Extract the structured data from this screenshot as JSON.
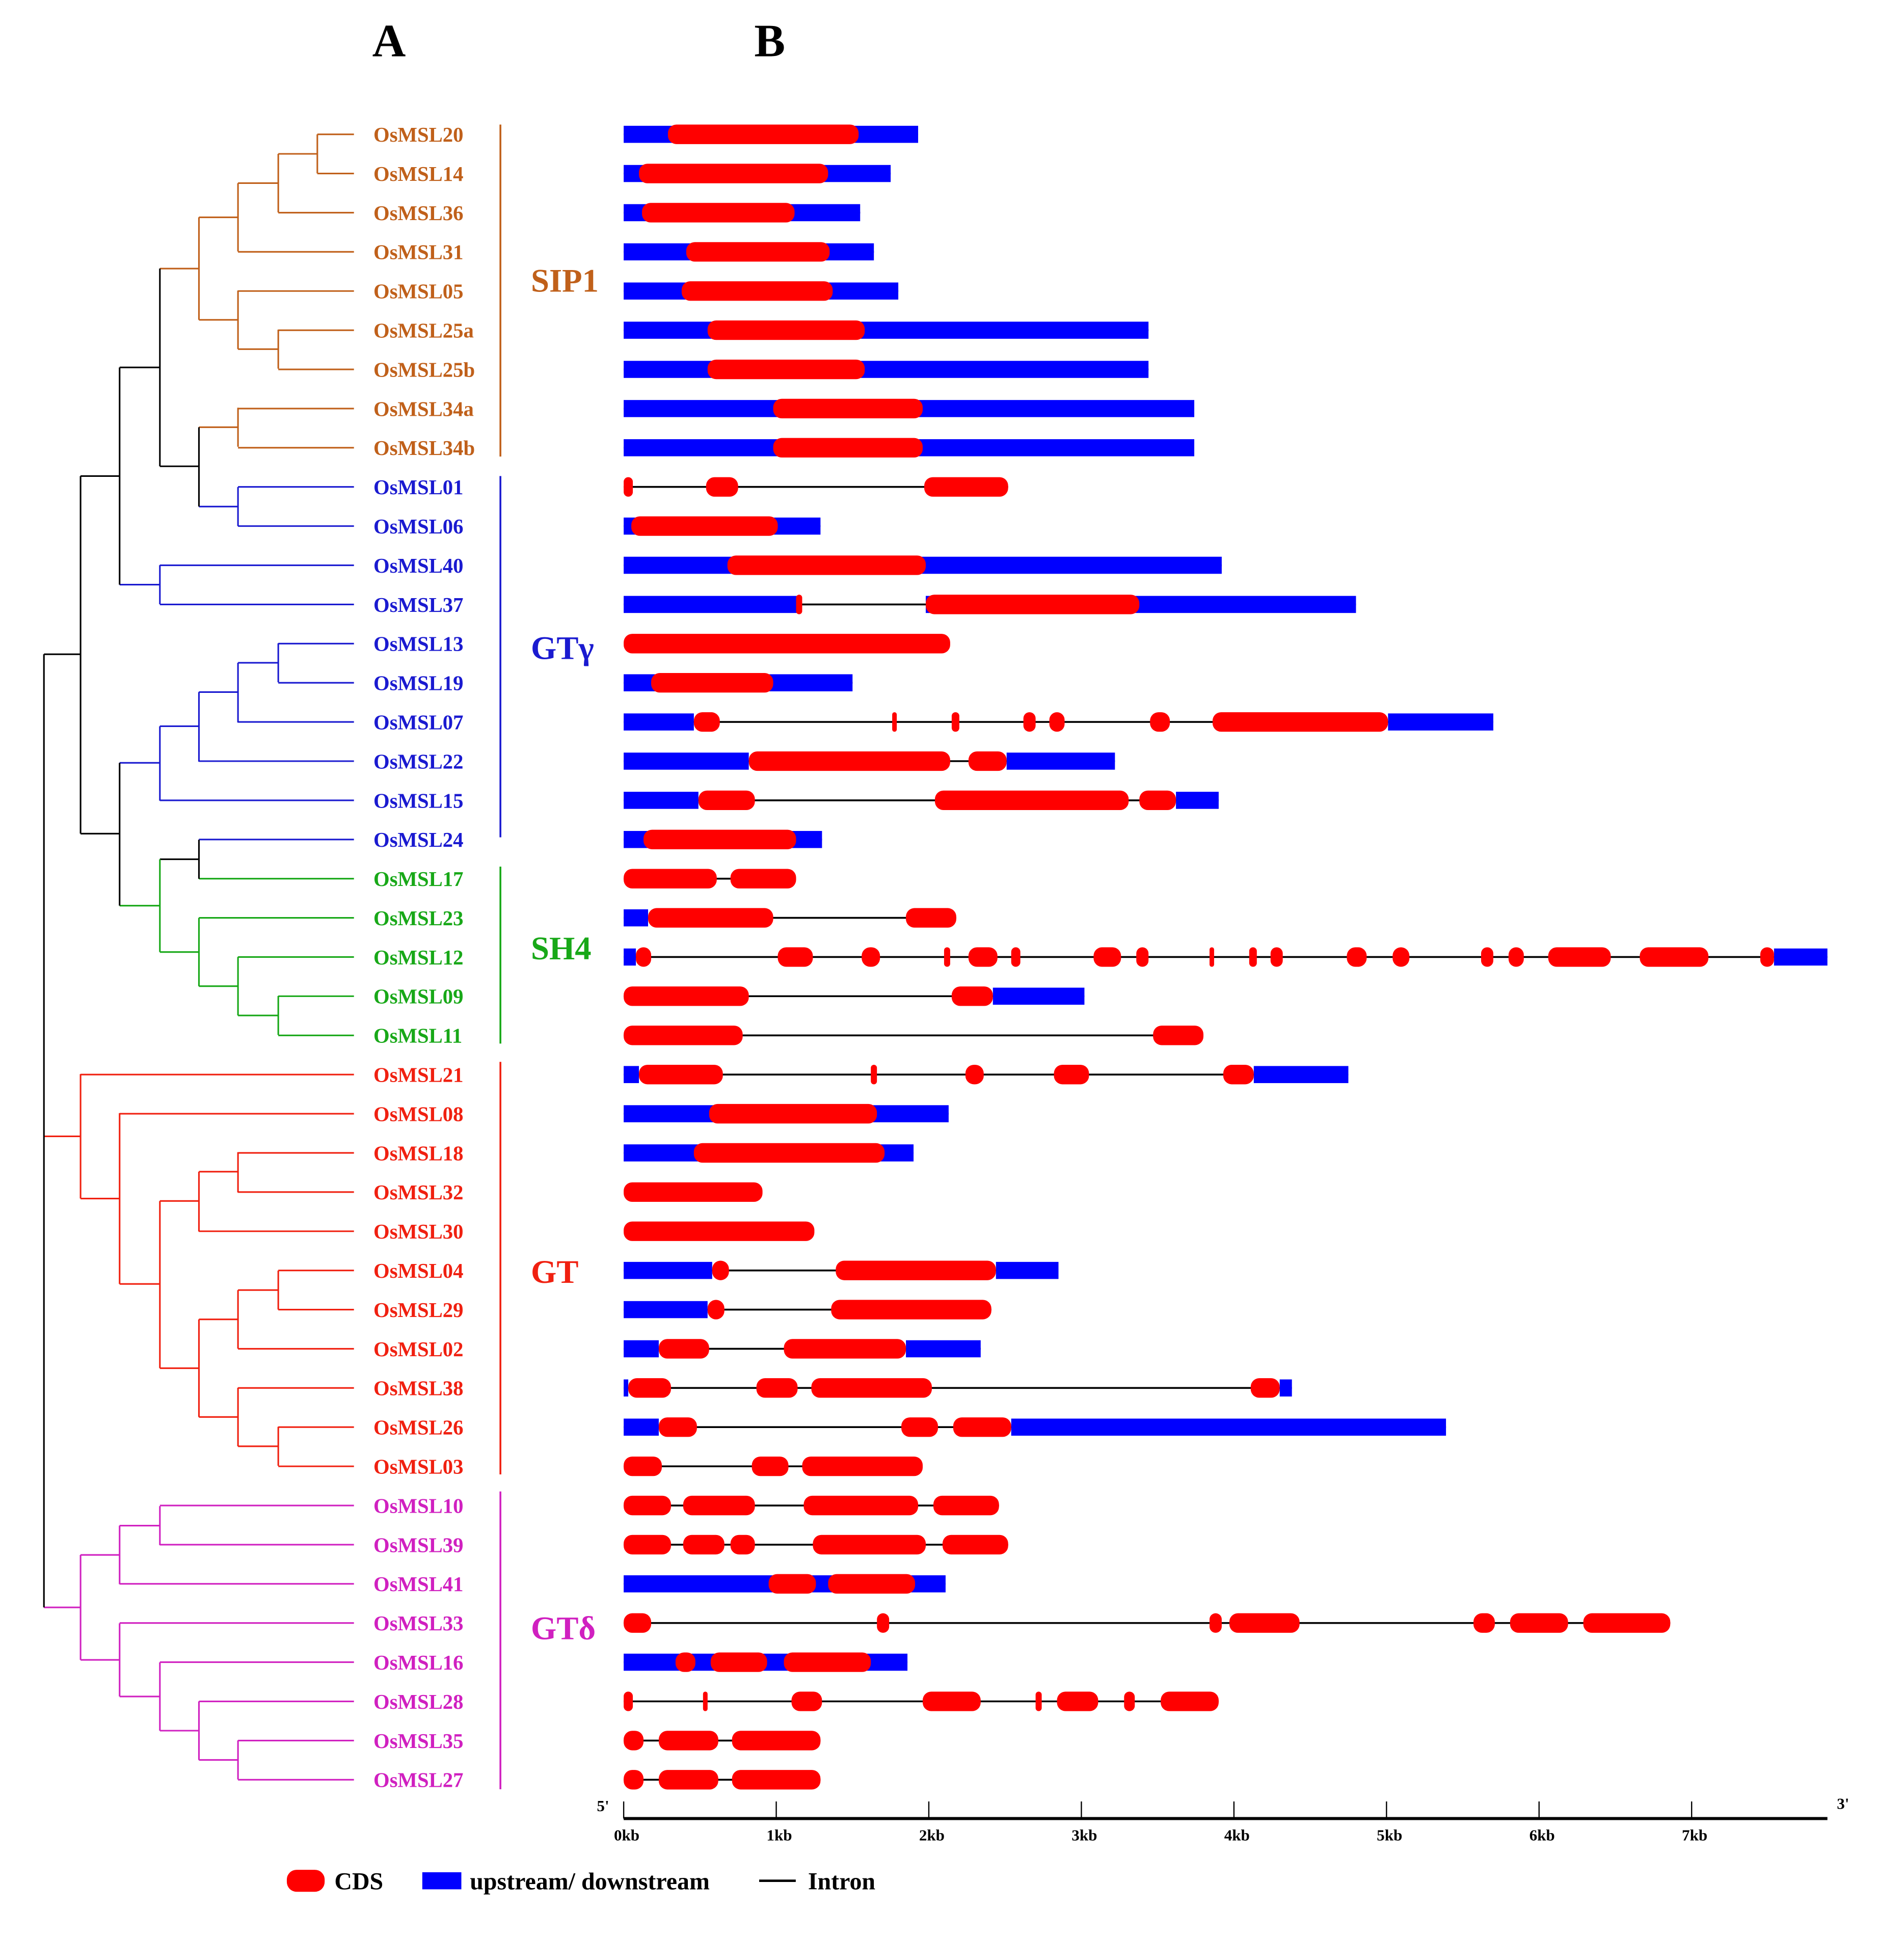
{
  "headers": {
    "a": "A",
    "b": "B"
  },
  "colors": {
    "cds": "#ff0000",
    "utr": "#0000ff",
    "intron": "#000000",
    "tree_internal": "#000000"
  },
  "clades": [
    {
      "name": "SIP1",
      "color": "#c0601a"
    },
    {
      "name": "GTγ",
      "color": "#1a1ad0"
    },
    {
      "name": "SH4",
      "color": "#18a818"
    },
    {
      "name": "GT",
      "color": "#f02010"
    },
    {
      "name": "GTδ",
      "color": "#d020c0"
    }
  ],
  "genes": [
    {
      "name": "OsMSL20",
      "clade": 0,
      "parts": [
        [
          "u",
          0,
          1.93
        ],
        [
          "c",
          0.29,
          1.54
        ]
      ]
    },
    {
      "name": "OsMSL14",
      "clade": 0,
      "parts": [
        [
          "u",
          0,
          1.75
        ],
        [
          "c",
          0.1,
          1.34
        ]
      ]
    },
    {
      "name": "OsMSL36",
      "clade": 0,
      "parts": [
        [
          "u",
          0,
          1.55
        ],
        [
          "c",
          0.12,
          1.12
        ]
      ]
    },
    {
      "name": "OsMSL31",
      "clade": 0,
      "parts": [
        [
          "u",
          0,
          1.64
        ],
        [
          "c",
          0.41,
          1.35
        ]
      ]
    },
    {
      "name": "OsMSL05",
      "clade": 0,
      "parts": [
        [
          "u",
          0,
          1.8
        ],
        [
          "c",
          0.38,
          1.37
        ]
      ]
    },
    {
      "name": "OsMSL25a",
      "clade": 0,
      "parts": [
        [
          "u",
          0,
          3.44
        ],
        [
          "c",
          0.55,
          1.58
        ]
      ]
    },
    {
      "name": "OsMSL25b",
      "clade": 0,
      "parts": [
        [
          "u",
          0,
          3.44
        ],
        [
          "c",
          0.55,
          1.58
        ]
      ]
    },
    {
      "name": "OsMSL34a",
      "clade": 0,
      "parts": [
        [
          "u",
          0,
          3.74
        ],
        [
          "c",
          0.98,
          1.96
        ]
      ]
    },
    {
      "name": "OsMSL34b",
      "clade": 0,
      "parts": [
        [
          "u",
          0,
          3.74
        ],
        [
          "c",
          0.98,
          1.96
        ]
      ]
    },
    {
      "name": "OsMSL01",
      "clade": 1,
      "parts": [
        [
          "c",
          0,
          0.06
        ],
        [
          "c",
          0.54,
          0.75
        ],
        [
          "c",
          1.97,
          2.52
        ]
      ]
    },
    {
      "name": "OsMSL06",
      "clade": 1,
      "parts": [
        [
          "u",
          0,
          1.29
        ],
        [
          "c",
          0.05,
          1.01
        ]
      ]
    },
    {
      "name": "OsMSL40",
      "clade": 1,
      "parts": [
        [
          "u",
          0,
          3.92
        ],
        [
          "c",
          0.68,
          1.98
        ]
      ]
    },
    {
      "name": "OsMSL37",
      "clade": 1,
      "parts": [
        [
          "u",
          0,
          1.14
        ],
        [
          "u",
          1.98,
          4.8
        ],
        [
          "c",
          1.13,
          1.17
        ],
        [
          "c",
          1.98,
          3.38
        ]
      ]
    },
    {
      "name": "OsMSL13",
      "clade": 1,
      "parts": [
        [
          "c",
          0,
          2.14
        ]
      ]
    },
    {
      "name": "OsMSL19",
      "clade": 1,
      "parts": [
        [
          "u",
          0,
          1.5
        ],
        [
          "c",
          0.18,
          0.98
        ]
      ]
    },
    {
      "name": "OsMSL07",
      "clade": 1,
      "parts": [
        [
          "u",
          0,
          0.46
        ],
        [
          "u",
          5.01,
          5.7
        ],
        [
          "c",
          0.46,
          0.63
        ],
        [
          "c",
          1.76,
          1.79
        ],
        [
          "c",
          2.15,
          2.2
        ],
        [
          "c",
          2.62,
          2.7
        ],
        [
          "c",
          2.79,
          2.89
        ],
        [
          "c",
          3.45,
          3.58
        ],
        [
          "c",
          3.86,
          5.01
        ]
      ]
    },
    {
      "name": "OsMSL22",
      "clade": 1,
      "parts": [
        [
          "u",
          0,
          0.82
        ],
        [
          "u",
          2.51,
          3.22
        ],
        [
          "c",
          0.82,
          2.14
        ],
        [
          "c",
          2.26,
          2.51
        ]
      ]
    },
    {
      "name": "OsMSL15",
      "clade": 1,
      "parts": [
        [
          "u",
          0,
          0.49
        ],
        [
          "u",
          3.62,
          3.9
        ],
        [
          "c",
          0.49,
          0.86
        ],
        [
          "c",
          2.04,
          3.31
        ],
        [
          "c",
          3.38,
          3.62
        ]
      ]
    },
    {
      "name": "OsMSL24",
      "clade": 1,
      "parts": [
        [
          "u",
          0,
          1.3
        ],
        [
          "c",
          0.13,
          1.13
        ]
      ]
    },
    {
      "name": "OsMSL17",
      "clade": 2,
      "parts": [
        [
          "c",
          0,
          0.61
        ],
        [
          "c",
          0.7,
          1.13
        ]
      ]
    },
    {
      "name": "OsMSL23",
      "clade": 2,
      "parts": [
        [
          "u",
          0,
          0.16
        ],
        [
          "c",
          0.16,
          0.98
        ],
        [
          "c",
          1.85,
          2.18
        ]
      ]
    },
    {
      "name": "OsMSL12",
      "clade": 2,
      "parts": [
        [
          "u",
          0,
          0.08
        ],
        [
          "u",
          7.54,
          7.89
        ],
        [
          "c",
          0.08,
          0.18
        ],
        [
          "c",
          1.01,
          1.24
        ],
        [
          "c",
          1.56,
          1.68
        ],
        [
          "c",
          2.1,
          2.14
        ],
        [
          "c",
          2.26,
          2.45
        ],
        [
          "c",
          2.54,
          2.6
        ],
        [
          "c",
          3.08,
          3.26
        ],
        [
          "c",
          3.36,
          3.44
        ],
        [
          "c",
          3.84,
          3.87
        ],
        [
          "c",
          4.1,
          4.15
        ],
        [
          "c",
          4.24,
          4.32
        ],
        [
          "c",
          4.74,
          4.87
        ],
        [
          "c",
          5.04,
          5.15
        ],
        [
          "c",
          5.62,
          5.7
        ],
        [
          "c",
          5.8,
          5.9
        ],
        [
          "c",
          6.06,
          6.47
        ],
        [
          "c",
          6.66,
          7.11
        ],
        [
          "c",
          7.45,
          7.54
        ]
      ]
    },
    {
      "name": "OsMSL09",
      "clade": 2,
      "parts": [
        [
          "u",
          2.42,
          3.02
        ],
        [
          "c",
          0,
          0.82
        ],
        [
          "c",
          2.15,
          2.42
        ]
      ]
    },
    {
      "name": "OsMSL11",
      "clade": 2,
      "parts": [
        [
          "c",
          0,
          0.78
        ],
        [
          "c",
          3.47,
          3.8
        ]
      ]
    },
    {
      "name": "OsMSL21",
      "clade": 3,
      "parts": [
        [
          "u",
          0,
          0.1
        ],
        [
          "u",
          4.13,
          4.75
        ],
        [
          "c",
          0.1,
          0.65
        ],
        [
          "c",
          1.62,
          1.66
        ],
        [
          "c",
          2.24,
          2.36
        ],
        [
          "c",
          2.82,
          3.05
        ],
        [
          "c",
          3.93,
          4.13
        ]
      ]
    },
    {
      "name": "OsMSL08",
      "clade": 3,
      "parts": [
        [
          "u",
          0,
          2.13
        ],
        [
          "c",
          0.56,
          1.66
        ]
      ]
    },
    {
      "name": "OsMSL18",
      "clade": 3,
      "parts": [
        [
          "u",
          0,
          1.9
        ],
        [
          "c",
          0.46,
          1.71
        ]
      ]
    },
    {
      "name": "OsMSL32",
      "clade": 3,
      "parts": [
        [
          "c",
          0,
          0.91
        ]
      ]
    },
    {
      "name": "OsMSL30",
      "clade": 3,
      "parts": [
        [
          "c",
          0,
          1.25
        ]
      ]
    },
    {
      "name": "OsMSL04",
      "clade": 3,
      "parts": [
        [
          "u",
          0,
          0.58
        ],
        [
          "u",
          2.44,
          2.85
        ],
        [
          "c",
          0.58,
          0.69
        ],
        [
          "c",
          1.39,
          2.44
        ]
      ]
    },
    {
      "name": "OsMSL29",
      "clade": 3,
      "parts": [
        [
          "u",
          0,
          0.55
        ],
        [
          "c",
          0.55,
          0.66
        ],
        [
          "c",
          1.36,
          2.41
        ]
      ]
    },
    {
      "name": "OsMSL02",
      "clade": 3,
      "parts": [
        [
          "u",
          0,
          0.23
        ],
        [
          "u",
          1.85,
          2.34
        ],
        [
          "c",
          0.23,
          0.56
        ],
        [
          "c",
          1.05,
          1.85
        ]
      ]
    },
    {
      "name": "OsMSL38",
      "clade": 3,
      "parts": [
        [
          "u",
          0,
          0.03
        ],
        [
          "u",
          4.3,
          4.38
        ],
        [
          "c",
          0.03,
          0.31
        ],
        [
          "c",
          0.87,
          1.14
        ],
        [
          "c",
          1.23,
          2.02
        ],
        [
          "c",
          4.11,
          4.3
        ]
      ]
    },
    {
      "name": "OsMSL26",
      "clade": 3,
      "parts": [
        [
          "u",
          0,
          0.23
        ],
        [
          "u",
          2.54,
          5.39
        ],
        [
          "c",
          0.23,
          0.48
        ],
        [
          "c",
          1.82,
          2.06
        ],
        [
          "c",
          2.16,
          2.54
        ]
      ]
    },
    {
      "name": "OsMSL03",
      "clade": 3,
      "parts": [
        [
          "c",
          0,
          0.25
        ],
        [
          "c",
          0.84,
          1.08
        ],
        [
          "c",
          1.17,
          1.96
        ]
      ]
    },
    {
      "name": "OsMSL10",
      "clade": 4,
      "parts": [
        [
          "c",
          0,
          0.31
        ],
        [
          "c",
          0.39,
          0.86
        ],
        [
          "c",
          1.18,
          1.93
        ],
        [
          "c",
          2.03,
          2.46
        ]
      ]
    },
    {
      "name": "OsMSL39",
      "clade": 4,
      "parts": [
        [
          "c",
          0,
          0.31
        ],
        [
          "c",
          0.39,
          0.66
        ],
        [
          "c",
          0.7,
          0.86
        ],
        [
          "c",
          1.24,
          1.98
        ],
        [
          "c",
          2.09,
          2.52
        ]
      ]
    },
    {
      "name": "OsMSL41",
      "clade": 4,
      "parts": [
        [
          "u",
          0,
          2.11
        ],
        [
          "c",
          0.95,
          1.26
        ],
        [
          "c",
          1.34,
          1.91
        ]
      ]
    },
    {
      "name": "OsMSL33",
      "clade": 4,
      "parts": [
        [
          "c",
          0,
          0.18
        ],
        [
          "c",
          1.66,
          1.74
        ],
        [
          "c",
          3.84,
          3.92
        ],
        [
          "c",
          3.97,
          4.43
        ],
        [
          "c",
          5.57,
          5.71
        ],
        [
          "c",
          5.81,
          6.19
        ],
        [
          "c",
          6.29,
          6.86
        ]
      ]
    },
    {
      "name": "OsMSL16",
      "clade": 4,
      "parts": [
        [
          "u",
          0,
          1.86
        ],
        [
          "c",
          0.34,
          0.47
        ],
        [
          "c",
          0.57,
          0.94
        ],
        [
          "c",
          1.05,
          1.62
        ]
      ]
    },
    {
      "name": "OsMSL28",
      "clade": 4,
      "parts": [
        [
          "c",
          0,
          0.06
        ],
        [
          "c",
          0.52,
          0.55
        ],
        [
          "c",
          1.1,
          1.3
        ],
        [
          "c",
          1.96,
          2.34
        ],
        [
          "c",
          2.7,
          2.74
        ],
        [
          "c",
          2.84,
          3.11
        ],
        [
          "c",
          3.28,
          3.35
        ],
        [
          "c",
          3.52,
          3.9
        ]
      ]
    },
    {
      "name": "OsMSL35",
      "clade": 4,
      "parts": [
        [
          "c",
          0,
          0.13
        ],
        [
          "c",
          0.23,
          0.62
        ],
        [
          "c",
          0.71,
          1.29
        ]
      ]
    },
    {
      "name": "OsMSL27",
      "clade": 4,
      "parts": [
        [
          "c",
          0,
          0.13
        ],
        [
          "c",
          0.23,
          0.62
        ],
        [
          "c",
          0.71,
          1.29
        ]
      ]
    }
  ],
  "axis": {
    "five_prime": "5'",
    "three_prime": "3'",
    "max_kb": 7.89,
    "ticks": [
      "0kb",
      "1kb",
      "2kb",
      "3kb",
      "4kb",
      "5kb",
      "6kb",
      "7kb"
    ]
  },
  "legend": {
    "cds": "CDS",
    "utr": "upstream/ downstream",
    "intron": "Intron"
  }
}
